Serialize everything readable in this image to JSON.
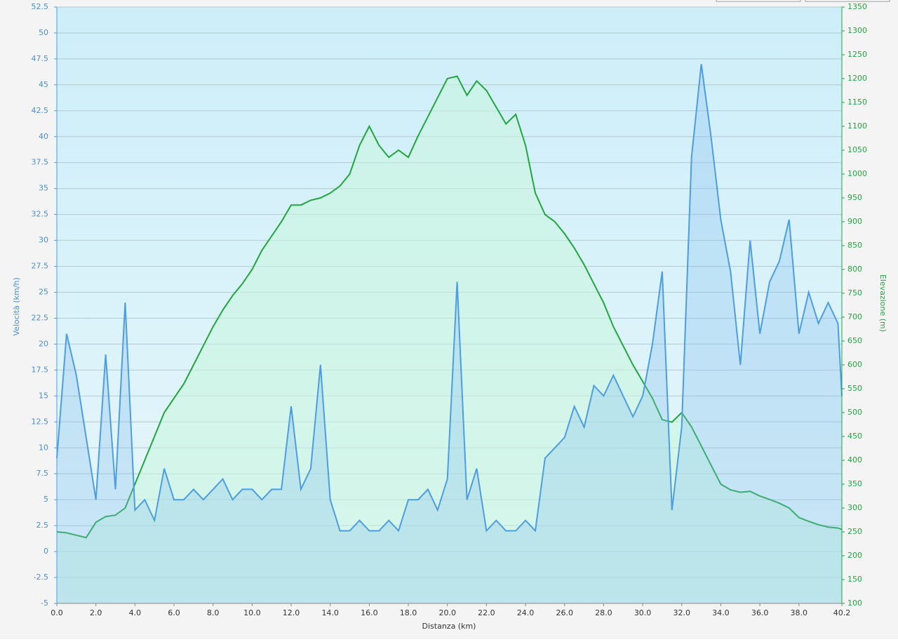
{
  "chart_data": {
    "type": "line",
    "xlabel": "Distanza  (km)",
    "ylabel": "Velocità (km/h)",
    "y2label": "Elevazione (m)",
    "x": [
      0,
      0.5,
      1,
      1.5,
      2,
      2.5,
      3,
      3.5,
      4,
      4.5,
      5,
      5.5,
      6,
      6.5,
      7,
      7.5,
      8,
      8.5,
      9,
      9.5,
      10,
      10.5,
      11,
      11.5,
      12,
      12.5,
      13,
      13.5,
      14,
      14.5,
      15,
      15.5,
      16,
      16.5,
      17,
      17.5,
      18,
      18.5,
      19,
      19.5,
      20,
      20.5,
      21,
      21.5,
      22,
      22.5,
      23,
      23.5,
      24,
      24.5,
      25,
      25.5,
      26,
      26.5,
      27,
      27.5,
      28,
      28.5,
      29,
      29.5,
      30,
      30.5,
      31,
      31.5,
      32,
      32.5,
      33,
      33.5,
      34,
      34.5,
      35,
      35.5,
      36,
      36.5,
      37,
      37.5,
      38,
      38.5,
      39,
      39.5,
      40,
      40.2
    ],
    "series": [
      {
        "color": "#4d9de0",
        "axis": "y",
        "values": [
          9,
          21,
          17,
          11,
          5,
          19,
          6,
          24,
          4,
          5,
          3,
          8,
          5,
          5,
          6,
          5,
          6,
          7,
          5,
          6,
          6,
          5,
          6,
          6,
          14,
          6,
          8,
          18,
          5,
          2,
          2,
          3,
          2,
          2,
          3,
          2,
          5,
          5,
          6,
          4,
          7,
          26,
          5,
          8,
          2,
          3,
          2,
          2,
          3,
          2,
          9,
          10,
          11,
          14,
          12,
          16,
          15,
          17,
          15,
          13,
          15,
          20,
          27,
          4,
          12,
          38,
          47,
          40,
          32,
          27,
          18,
          30,
          21,
          26,
          28,
          32,
          21,
          25,
          22,
          24,
          22,
          15
        ]
      },
      {
        "color": "#22a540",
        "axis": "y2",
        "values": [
          250,
          248,
          243,
          238,
          270,
          282,
          285,
          300,
          350,
          400,
          450,
          500,
          530,
          560,
          600,
          640,
          680,
          715,
          745,
          770,
          800,
          840,
          870,
          900,
          935,
          935,
          945,
          950,
          960,
          975,
          1000,
          1060,
          1100,
          1060,
          1035,
          1050,
          1035,
          1080,
          1120,
          1160,
          1200,
          1205,
          1165,
          1195,
          1175,
          1140,
          1105,
          1125,
          1060,
          960,
          915,
          900,
          875,
          845,
          810,
          770,
          730,
          680,
          640,
          600,
          565,
          530,
          485,
          480,
          500,
          470,
          430,
          390,
          350,
          338,
          333,
          335,
          325,
          318,
          310,
          300,
          280,
          272,
          265,
          260,
          258,
          255
        ]
      }
    ],
    "xlim": [
      0,
      40.2
    ],
    "xticks": [
      {
        "value": 0,
        "label": "0.0"
      },
      {
        "value": 2,
        "label": "2.0"
      },
      {
        "value": 4,
        "label": "4.0"
      },
      {
        "value": 6,
        "label": "6.0"
      },
      {
        "value": 8,
        "label": "8.0"
      },
      {
        "value": 10,
        "label": "10.0"
      },
      {
        "value": 12,
        "label": "12.0"
      },
      {
        "value": 14,
        "label": "14.0"
      },
      {
        "value": 16,
        "label": "16.0"
      },
      {
        "value": 18,
        "label": "18.0"
      },
      {
        "value": 20,
        "label": "20.0"
      },
      {
        "value": 22,
        "label": "22.0"
      },
      {
        "value": 24,
        "label": "24.0"
      },
      {
        "value": 26,
        "label": "26.0"
      },
      {
        "value": 28,
        "label": "28.0"
      },
      {
        "value": 30,
        "label": "30.0"
      },
      {
        "value": 32,
        "label": "32.0"
      },
      {
        "value": 34,
        "label": "34.0"
      },
      {
        "value": 36,
        "label": "36.0"
      },
      {
        "value": 38,
        "label": "38.0"
      },
      {
        "value": 40.2,
        "label": "40.2"
      }
    ],
    "ylim": [
      -5,
      52.5
    ],
    "yticks": [
      -5,
      -2.5,
      0,
      2.5,
      5,
      7.5,
      10,
      12.5,
      15,
      17.5,
      20,
      22.5,
      25,
      27.5,
      30,
      32.5,
      35,
      37.5,
      40,
      42.5,
      45,
      47.5,
      50,
      52.5
    ],
    "y2lim": [
      100,
      1350
    ],
    "y2ticks": [
      100,
      150,
      200,
      250,
      300,
      350,
      400,
      450,
      500,
      550,
      600,
      650,
      700,
      750,
      800,
      850,
      900,
      950,
      1000,
      1050,
      1100,
      1150,
      1200,
      1250,
      1300,
      1350
    ],
    "grid": true
  }
}
